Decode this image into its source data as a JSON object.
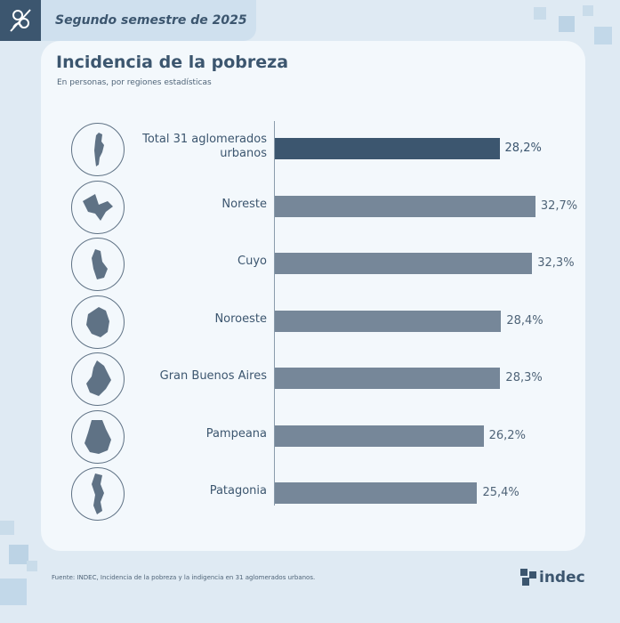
{
  "header": {
    "period": "Segundo semestre de 2025"
  },
  "chart_data": {
    "type": "bar",
    "orientation": "horizontal",
    "title": "Incidencia de la pobreza",
    "subtitle": "En personas, por regiones estadísticas",
    "categories": [
      "Total 31 aglomerados urbanos",
      "Noreste",
      "Cuyo",
      "Noroeste",
      "Gran Buenos Aires",
      "Pampeana",
      "Patagonia"
    ],
    "values": [
      28.2,
      32.7,
      32.3,
      28.4,
      28.3,
      26.2,
      25.4
    ],
    "value_labels": [
      "28,2%",
      "32,7%",
      "32,3%",
      "28,4%",
      "28,3%",
      "26,2%",
      "25,4%"
    ],
    "xlim": [
      0,
      33.5
    ],
    "highlight_color": "#3c566f",
    "bar_color": "#768799"
  },
  "rows": [
    {
      "label": "Total 31 aglomerados urbanos",
      "map_icon": "argentina-map-icon"
    },
    {
      "label": "Noreste",
      "map_icon": "noreste-region-map-icon"
    },
    {
      "label": "Cuyo",
      "map_icon": "cuyo-region-map-icon"
    },
    {
      "label": "Noroeste",
      "map_icon": "noroeste-region-map-icon"
    },
    {
      "label": "Gran Buenos Aires",
      "map_icon": "gran-buenos-aires-map-icon"
    },
    {
      "label": "Pampeana",
      "map_icon": "pampeana-region-map-icon"
    },
    {
      "label": "Patagonia",
      "map_icon": "patagonia-region-map-icon"
    }
  ],
  "footer": {
    "source": "Fuente: INDEC, Incidencia de la pobreza y la indigencia en 31 aglomerados urbanos.",
    "brand": "indec"
  }
}
